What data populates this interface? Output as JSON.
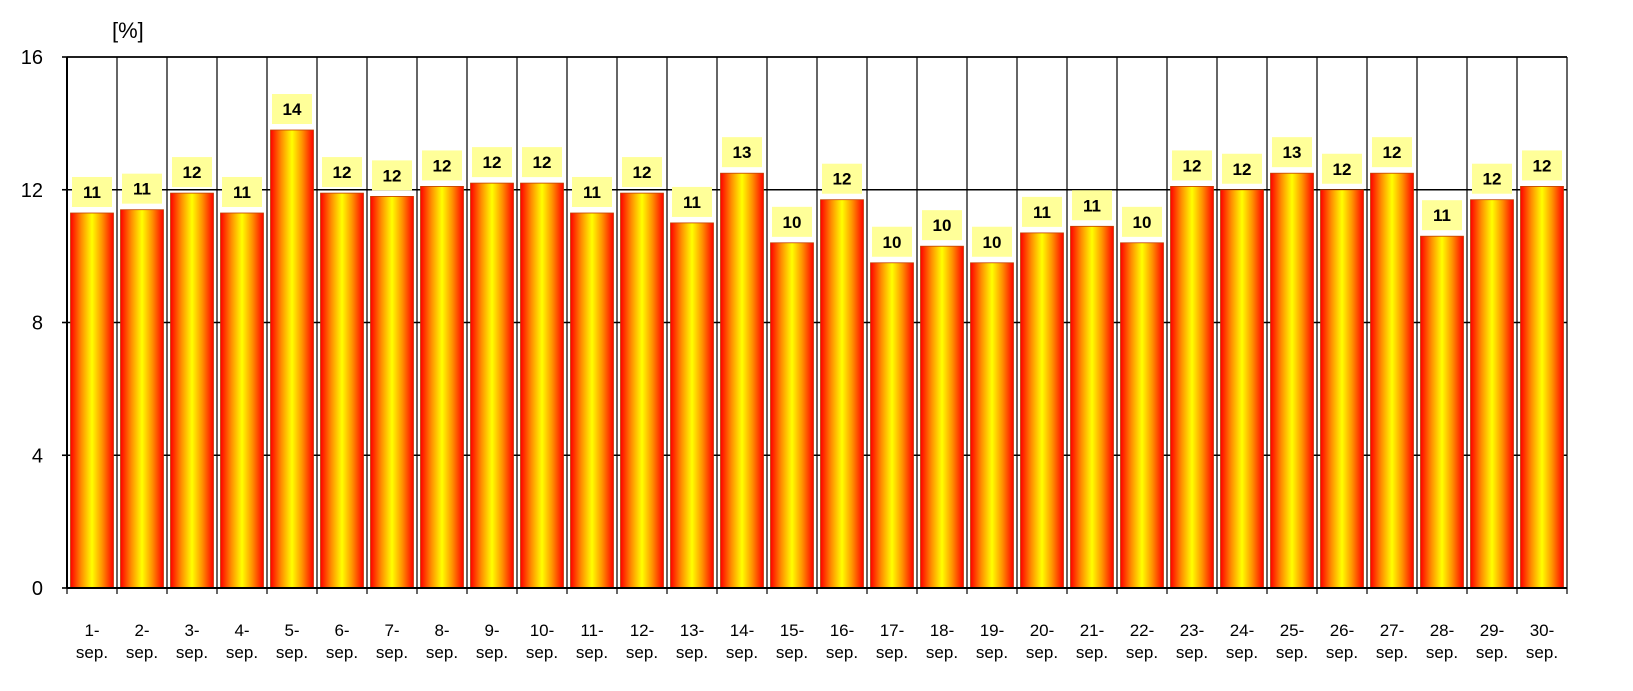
{
  "chart_data": {
    "type": "bar",
    "title": "",
    "xlabel": "",
    "ylabel": "[%]",
    "ylim": [
      0,
      16
    ],
    "yticks": [
      "0",
      "4",
      "8",
      "12",
      "16"
    ],
    "grid": true,
    "legend": "none",
    "categories": [
      [
        "1-",
        "sep."
      ],
      [
        "2-",
        "sep."
      ],
      [
        "3-",
        "sep."
      ],
      [
        "4-",
        "sep."
      ],
      [
        "5-",
        "sep."
      ],
      [
        "6-",
        "sep."
      ],
      [
        "7-",
        "sep."
      ],
      [
        "8-",
        "sep."
      ],
      [
        "9-",
        "sep."
      ],
      [
        "10-",
        "sep."
      ],
      [
        "11-",
        "sep."
      ],
      [
        "12-",
        "sep."
      ],
      [
        "13-",
        "sep."
      ],
      [
        "14-",
        "sep."
      ],
      [
        "15-",
        "sep."
      ],
      [
        "16-",
        "sep."
      ],
      [
        "17-",
        "sep."
      ],
      [
        "18-",
        "sep."
      ],
      [
        "19-",
        "sep."
      ],
      [
        "20-",
        "sep."
      ],
      [
        "21-",
        "sep."
      ],
      [
        "22-",
        "sep."
      ],
      [
        "23-",
        "sep."
      ],
      [
        "24-",
        "sep."
      ],
      [
        "25-",
        "sep."
      ],
      [
        "26-",
        "sep."
      ],
      [
        "27-",
        "sep."
      ],
      [
        "28-",
        "sep."
      ],
      [
        "29-",
        "sep."
      ],
      [
        "30-",
        "sep."
      ]
    ],
    "values": [
      11.3,
      11.4,
      11.9,
      11.3,
      13.8,
      11.9,
      11.8,
      12.1,
      12.2,
      12.2,
      11.3,
      11.9,
      11.0,
      12.5,
      10.4,
      11.7,
      9.8,
      10.3,
      9.8,
      10.7,
      10.9,
      10.4,
      12.1,
      12.0,
      12.5,
      12.0,
      12.5,
      10.6,
      11.7,
      12.1
    ],
    "data_labels": [
      "11",
      "11",
      "12",
      "11",
      "14",
      "12",
      "12",
      "12",
      "12",
      "12",
      "11",
      "12",
      "11",
      "13",
      "10",
      "12",
      "10",
      "10",
      "10",
      "11",
      "11",
      "10",
      "12",
      "12",
      "13",
      "12",
      "12",
      "11",
      "12",
      "12"
    ],
    "colors": {
      "bar_edge": "#ff0000",
      "bar_center": "#ffff00",
      "bar_mid": "#ff8c00",
      "label_background": "#ffff99",
      "gridline": "#000000"
    }
  }
}
